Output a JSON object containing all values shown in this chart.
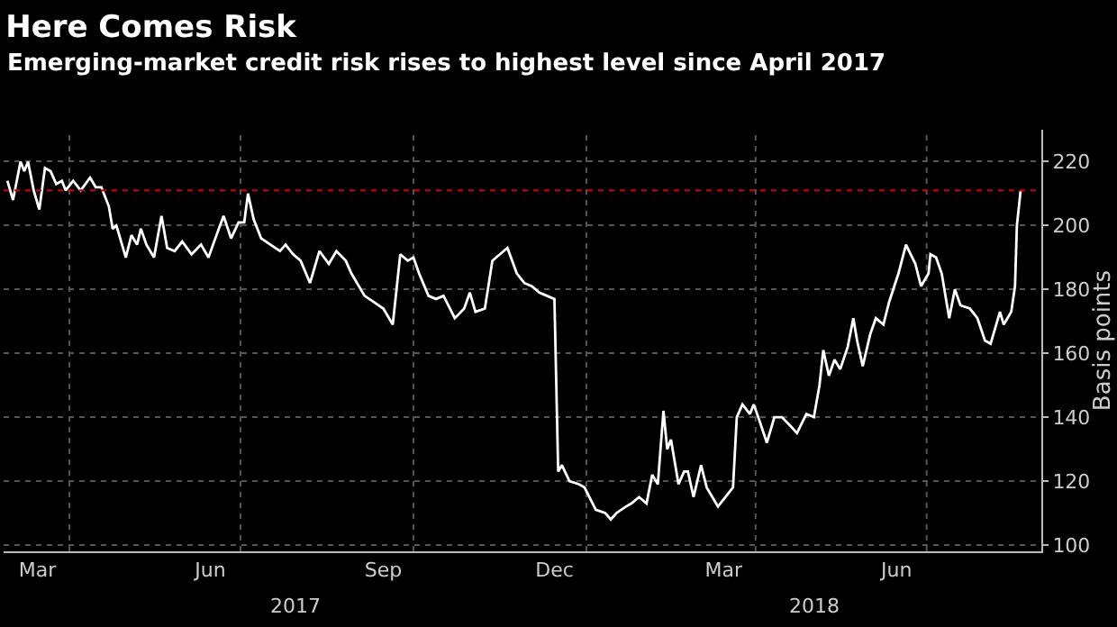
{
  "chart_data": {
    "type": "line",
    "title": "Here Comes Risk",
    "subtitle": "Emerging-market credit risk rises to highest level since April 2017",
    "ylabel": "Basis points",
    "x": [
      "2017-02-27",
      "2017-03-02",
      "2017-03-06",
      "2017-03-08",
      "2017-03-10",
      "2017-03-13",
      "2017-03-16",
      "2017-03-19",
      "2017-03-22",
      "2017-03-25",
      "2017-03-28",
      "2017-03-30",
      "2017-04-03",
      "2017-04-07",
      "2017-04-12",
      "2017-04-15",
      "2017-04-18",
      "2017-04-22",
      "2017-04-24",
      "2017-04-26",
      "2017-05-01",
      "2017-05-04",
      "2017-05-07",
      "2017-05-09",
      "2017-05-12",
      "2017-05-16",
      "2017-05-20",
      "2017-05-23",
      "2017-05-27",
      "2017-05-31",
      "2017-06-05",
      "2017-06-10",
      "2017-06-14",
      "2017-06-17",
      "2017-06-22",
      "2017-06-26",
      "2017-06-30",
      "2017-07-03",
      "2017-07-05",
      "2017-07-08",
      "2017-07-12",
      "2017-07-17",
      "2017-07-22",
      "2017-07-25",
      "2017-07-29",
      "2017-08-02",
      "2017-08-07",
      "2017-08-12",
      "2017-08-17",
      "2017-08-21",
      "2017-08-26",
      "2017-08-29",
      "2017-09-05",
      "2017-09-10",
      "2017-09-15",
      "2017-09-20",
      "2017-09-24",
      "2017-09-28",
      "2017-10-01",
      "2017-10-04",
      "2017-10-09",
      "2017-10-13",
      "2017-10-17",
      "2017-10-23",
      "2017-10-28",
      "2017-10-31",
      "2017-11-03",
      "2017-11-08",
      "2017-11-12",
      "2017-11-16",
      "2017-11-20",
      "2017-11-25",
      "2017-11-29",
      "2017-12-03",
      "2017-12-07",
      "2017-12-11",
      "2017-12-15",
      "2017-12-17",
      "2017-12-19",
      "2017-12-23",
      "2017-12-28",
      "2017-12-31",
      "2018-01-06",
      "2018-01-11",
      "2018-01-14",
      "2018-01-17",
      "2018-01-22",
      "2018-01-25",
      "2018-01-29",
      "2018-02-02",
      "2018-02-05",
      "2018-02-08",
      "2018-02-11",
      "2018-02-13",
      "2018-02-15",
      "2018-02-19",
      "2018-02-22",
      "2018-02-24",
      "2018-02-27",
      "2018-03-03",
      "2018-03-06",
      "2018-03-09",
      "2018-03-12",
      "2018-03-16",
      "2018-03-20",
      "2018-03-22",
      "2018-03-25",
      "2018-03-29",
      "2018-03-31",
      "2018-04-03",
      "2018-04-07",
      "2018-04-11",
      "2018-04-15",
      "2018-04-20",
      "2018-04-23",
      "2018-04-28",
      "2018-05-02",
      "2018-05-05",
      "2018-05-07",
      "2018-05-10",
      "2018-05-13",
      "2018-05-16",
      "2018-05-20",
      "2018-05-23",
      "2018-05-25",
      "2018-05-28",
      "2018-06-01",
      "2018-06-04",
      "2018-06-08",
      "2018-06-11",
      "2018-06-16",
      "2018-06-20",
      "2018-06-25",
      "2018-06-28",
      "2018-07-02",
      "2018-07-03",
      "2018-07-06",
      "2018-07-09",
      "2018-07-13",
      "2018-07-16",
      "2018-07-19",
      "2018-07-24",
      "2018-07-28",
      "2018-08-01",
      "2018-08-04",
      "2018-08-09",
      "2018-08-11",
      "2018-08-15",
      "2018-08-17",
      "2018-08-18",
      "2018-08-20"
    ],
    "series": [
      {
        "color": "#ffffff",
        "values": [
          214,
          208,
          220,
          217,
          220,
          211,
          205,
          218,
          217,
          213,
          214,
          211,
          214,
          211,
          215,
          212,
          212,
          206,
          199,
          200,
          190,
          197,
          194,
          199,
          194,
          190,
          203,
          193,
          192,
          195,
          191,
          194,
          190,
          195,
          203,
          196,
          201,
          201,
          210,
          202,
          196,
          194,
          192,
          194,
          191,
          189,
          182,
          192,
          188,
          192,
          189,
          185,
          178,
          176,
          174,
          169,
          191,
          189,
          190,
          185,
          178,
          177,
          178,
          171,
          174,
          179,
          173,
          174,
          189,
          191,
          193,
          185,
          182,
          181,
          179,
          178,
          177,
          123,
          125,
          120,
          119,
          118,
          111,
          110,
          108,
          110,
          112,
          113,
          115,
          113,
          122,
          119,
          142,
          130,
          133,
          119,
          123,
          123,
          115,
          125,
          118,
          115,
          112,
          115,
          118,
          140,
          144,
          141,
          144,
          139,
          132,
          140,
          140,
          137,
          135,
          141,
          140,
          150,
          161,
          153,
          158,
          155,
          162,
          171,
          164,
          156,
          166,
          171,
          169,
          176,
          185,
          194,
          188,
          181,
          185,
          191,
          190,
          185,
          171,
          180,
          175,
          174,
          171,
          164,
          163,
          173,
          169,
          173,
          181,
          200,
          211
        ]
      }
    ],
    "xlim": [
      "2017-02-25",
      "2018-08-31"
    ],
    "xticks": [
      {
        "value": "2017-03-15",
        "label": "Mar"
      },
      {
        "value": "2017-04-01",
        "label": null
      },
      {
        "value": "2017-06-15",
        "label": "Jun"
      },
      {
        "value": "2017-07-01",
        "label": null
      },
      {
        "value": "2017-09-15",
        "label": "Sep"
      },
      {
        "value": "2017-10-01",
        "label": null
      },
      {
        "value": "2017-12-15",
        "label": "Dec"
      },
      {
        "value": "2018-01-01",
        "label": null
      },
      {
        "value": "2018-03-15",
        "label": "Mar"
      },
      {
        "value": "2018-04-01",
        "label": null
      },
      {
        "value": "2018-06-15",
        "label": "Jun"
      },
      {
        "value": "2018-07-01",
        "label": null
      }
    ],
    "annotations": [
      "2017",
      "2018"
    ],
    "ylim": [
      98,
      230
    ],
    "yticks": [
      100,
      120,
      140,
      160,
      180,
      200,
      220
    ],
    "grid": true,
    "line_style": "solid",
    "ref_lines": [
      {
        "axis": "y",
        "value": 211,
        "color": "#cc0000",
        "line_style": "dotted"
      }
    ]
  }
}
